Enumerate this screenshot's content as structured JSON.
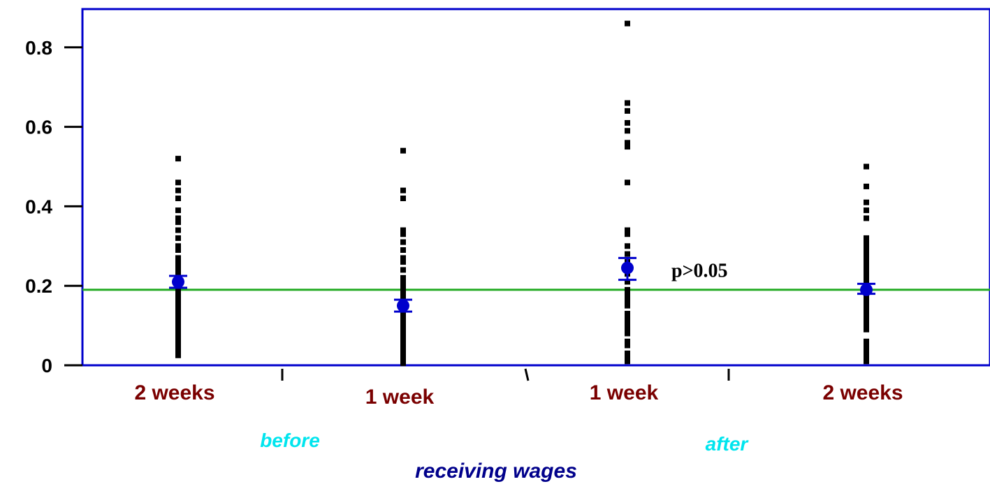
{
  "chart_data": {
    "type": "scatter",
    "categories": [
      "2 weeks",
      "1 week",
      "1 week",
      "2 weeks"
    ],
    "groups": [
      {
        "label": "before",
        "categories": [
          0,
          1
        ]
      },
      {
        "label": "after",
        "categories": [
          2,
          3
        ]
      }
    ],
    "xlabel": "receiving wages",
    "ylabel": "",
    "ylim": [
      0,
      0.88
    ],
    "yticks": [
      0,
      0.2,
      0.4,
      0.6,
      0.8
    ],
    "ytick_labels": [
      "0",
      "0.2",
      "0.4",
      "0.6",
      "0.8"
    ],
    "reference_line": {
      "value": 0.19,
      "color": "#22aa22"
    },
    "annotation": {
      "text": "p>0.05",
      "category": 2,
      "y": 0.24
    },
    "series": [
      {
        "kind": "raw_points",
        "color": "#000000",
        "points": [
          [
            0.52,
            0.46,
            0.44,
            0.42,
            0.39,
            0.37,
            0.36,
            0.34,
            0.32,
            0.3,
            0.29,
            0.27,
            0.26,
            0.25,
            0.24,
            0.23,
            0.22,
            0.21,
            0.2,
            0.19,
            0.18,
            0.17,
            0.16,
            0.15,
            0.14,
            0.13,
            0.12,
            0.11,
            0.1,
            0.09,
            0.08,
            0.07,
            0.06,
            0.05,
            0.04,
            0.03,
            0.025
          ],
          [
            0.54,
            0.44,
            0.42,
            0.34,
            0.33,
            0.31,
            0.29,
            0.27,
            0.26,
            0.24,
            0.22,
            0.21,
            0.2,
            0.19,
            0.18,
            0.17,
            0.16,
            0.15,
            0.14,
            0.13,
            0.12,
            0.11,
            0.1,
            0.09,
            0.08,
            0.07,
            0.06,
            0.05,
            0.04,
            0.03,
            0.02,
            0.01,
            0.005
          ],
          [
            0.86,
            0.66,
            0.64,
            0.61,
            0.59,
            0.56,
            0.55,
            0.46,
            0.34,
            0.33,
            0.3,
            0.28,
            0.26,
            0.25,
            0.23,
            0.21,
            0.19,
            0.18,
            0.17,
            0.16,
            0.15,
            0.13,
            0.12,
            0.11,
            0.1,
            0.09,
            0.08,
            0.06,
            0.05,
            0.03,
            0.02,
            0.01
          ],
          [
            0.5,
            0.45,
            0.41,
            0.39,
            0.37,
            0.32,
            0.31,
            0.3,
            0.29,
            0.28,
            0.27,
            0.26,
            0.25,
            0.24,
            0.23,
            0.22,
            0.21,
            0.2,
            0.19,
            0.18,
            0.17,
            0.16,
            0.15,
            0.14,
            0.13,
            0.12,
            0.11,
            0.1,
            0.09,
            0.06,
            0.05,
            0.04,
            0.03,
            0.02,
            0.01
          ]
        ]
      },
      {
        "kind": "mean_with_error",
        "color": "#0000cc",
        "means": [
          0.21,
          0.15,
          0.245,
          0.19
        ],
        "upper": [
          0.225,
          0.165,
          0.27,
          0.205
        ],
        "lower": [
          0.195,
          0.135,
          0.215,
          0.18
        ]
      }
    ]
  }
}
